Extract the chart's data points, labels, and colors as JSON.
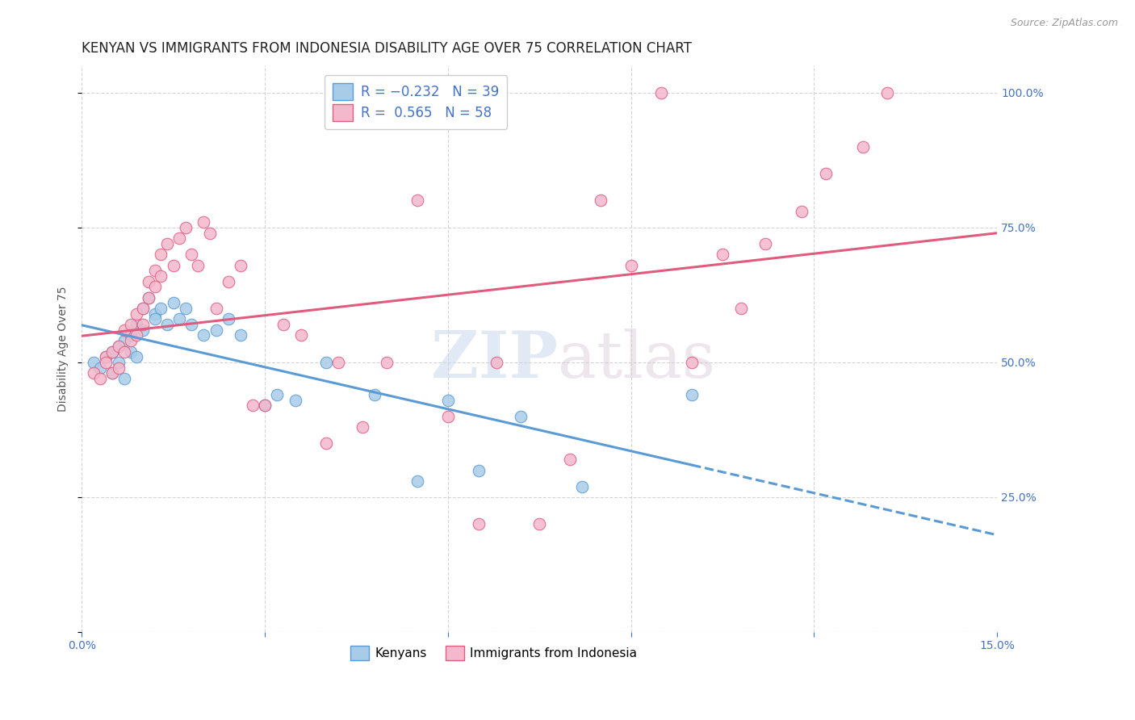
{
  "title": "KENYAN VS IMMIGRANTS FROM INDONESIA DISABILITY AGE OVER 75 CORRELATION CHART",
  "source": "Source: ZipAtlas.com",
  "ylabel_label": "Disability Age Over 75",
  "x_min": 0.0,
  "x_max": 0.15,
  "y_min": 0.0,
  "y_max": 1.05,
  "blue_color": "#a8cce8",
  "pink_color": "#f4b8cc",
  "line_blue": "#5b9bd5",
  "line_pink": "#e05c7e",
  "blue_scatter_x": [
    0.002,
    0.003,
    0.004,
    0.005,
    0.005,
    0.006,
    0.006,
    0.007,
    0.007,
    0.008,
    0.008,
    0.009,
    0.009,
    0.01,
    0.01,
    0.011,
    0.012,
    0.012,
    0.013,
    0.014,
    0.015,
    0.016,
    0.017,
    0.018,
    0.02,
    0.022,
    0.024,
    0.026,
    0.03,
    0.032,
    0.035,
    0.04,
    0.048,
    0.055,
    0.06,
    0.065,
    0.072,
    0.082,
    0.1
  ],
  "blue_scatter_y": [
    0.5,
    0.49,
    0.51,
    0.52,
    0.48,
    0.53,
    0.5,
    0.54,
    0.47,
    0.52,
    0.55,
    0.57,
    0.51,
    0.6,
    0.56,
    0.62,
    0.59,
    0.58,
    0.6,
    0.57,
    0.61,
    0.58,
    0.6,
    0.57,
    0.55,
    0.56,
    0.58,
    0.55,
    0.42,
    0.44,
    0.43,
    0.5,
    0.44,
    0.28,
    0.43,
    0.3,
    0.4,
    0.27,
    0.44
  ],
  "pink_scatter_x": [
    0.002,
    0.003,
    0.004,
    0.004,
    0.005,
    0.005,
    0.006,
    0.006,
    0.007,
    0.007,
    0.008,
    0.008,
    0.009,
    0.009,
    0.01,
    0.01,
    0.011,
    0.011,
    0.012,
    0.012,
    0.013,
    0.013,
    0.014,
    0.015,
    0.016,
    0.017,
    0.018,
    0.019,
    0.02,
    0.021,
    0.022,
    0.024,
    0.026,
    0.028,
    0.03,
    0.033,
    0.036,
    0.04,
    0.042,
    0.046,
    0.05,
    0.055,
    0.06,
    0.065,
    0.068,
    0.075,
    0.08,
    0.085,
    0.09,
    0.095,
    0.1,
    0.105,
    0.108,
    0.112,
    0.118,
    0.122,
    0.128,
    0.132
  ],
  "pink_scatter_y": [
    0.48,
    0.47,
    0.51,
    0.5,
    0.52,
    0.48,
    0.53,
    0.49,
    0.56,
    0.52,
    0.57,
    0.54,
    0.59,
    0.55,
    0.6,
    0.57,
    0.65,
    0.62,
    0.67,
    0.64,
    0.7,
    0.66,
    0.72,
    0.68,
    0.73,
    0.75,
    0.7,
    0.68,
    0.76,
    0.74,
    0.6,
    0.65,
    0.68,
    0.42,
    0.42,
    0.57,
    0.55,
    0.35,
    0.5,
    0.38,
    0.5,
    0.8,
    0.4,
    0.2,
    0.5,
    0.2,
    0.32,
    0.8,
    0.68,
    1.0,
    0.5,
    0.7,
    0.6,
    0.72,
    0.78,
    0.85,
    0.9,
    1.0
  ],
  "background_color": "#ffffff",
  "grid_color": "#d0d0d0",
  "watermark_zip": "ZIP",
  "watermark_atlas": "atlas",
  "title_fontsize": 12,
  "axis_label_fontsize": 10,
  "tick_fontsize": 10,
  "source_fontsize": 9,
  "legend_fontsize": 12
}
